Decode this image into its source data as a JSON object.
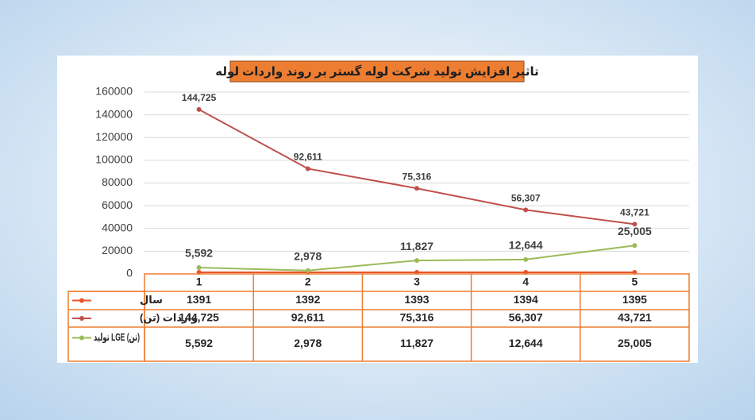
{
  "chart_data": {
    "type": "line",
    "title": "تاثیر افزایش تولید شرکت لوله گستر بر روند واردات لوله",
    "categories": [
      "1",
      "2",
      "3",
      "4",
      "5"
    ],
    "series": [
      {
        "name": "سال",
        "color": "#e8532b",
        "values": [
          1391,
          1392,
          1393,
          1394,
          1395
        ]
      },
      {
        "name": "واردات (تن)",
        "color": "#c0504d",
        "values": [
          144725,
          92611,
          75316,
          56307,
          43721
        ],
        "value_labels": [
          "144,725",
          "92,611",
          "75,316",
          "56,307",
          "43,721"
        ]
      },
      {
        "name": "تولید LGE (تن)",
        "color": "#9bbb59",
        "values": [
          5592,
          2978,
          11827,
          12644,
          25005
        ],
        "value_labels": [
          "5,592",
          "2,978",
          "11,827",
          "12,644",
          "25,005"
        ]
      }
    ],
    "ylim": [
      0,
      160000
    ],
    "yticks": [
      0,
      20000,
      40000,
      60000,
      80000,
      100000,
      120000,
      140000,
      160000
    ],
    "grid": true
  }
}
